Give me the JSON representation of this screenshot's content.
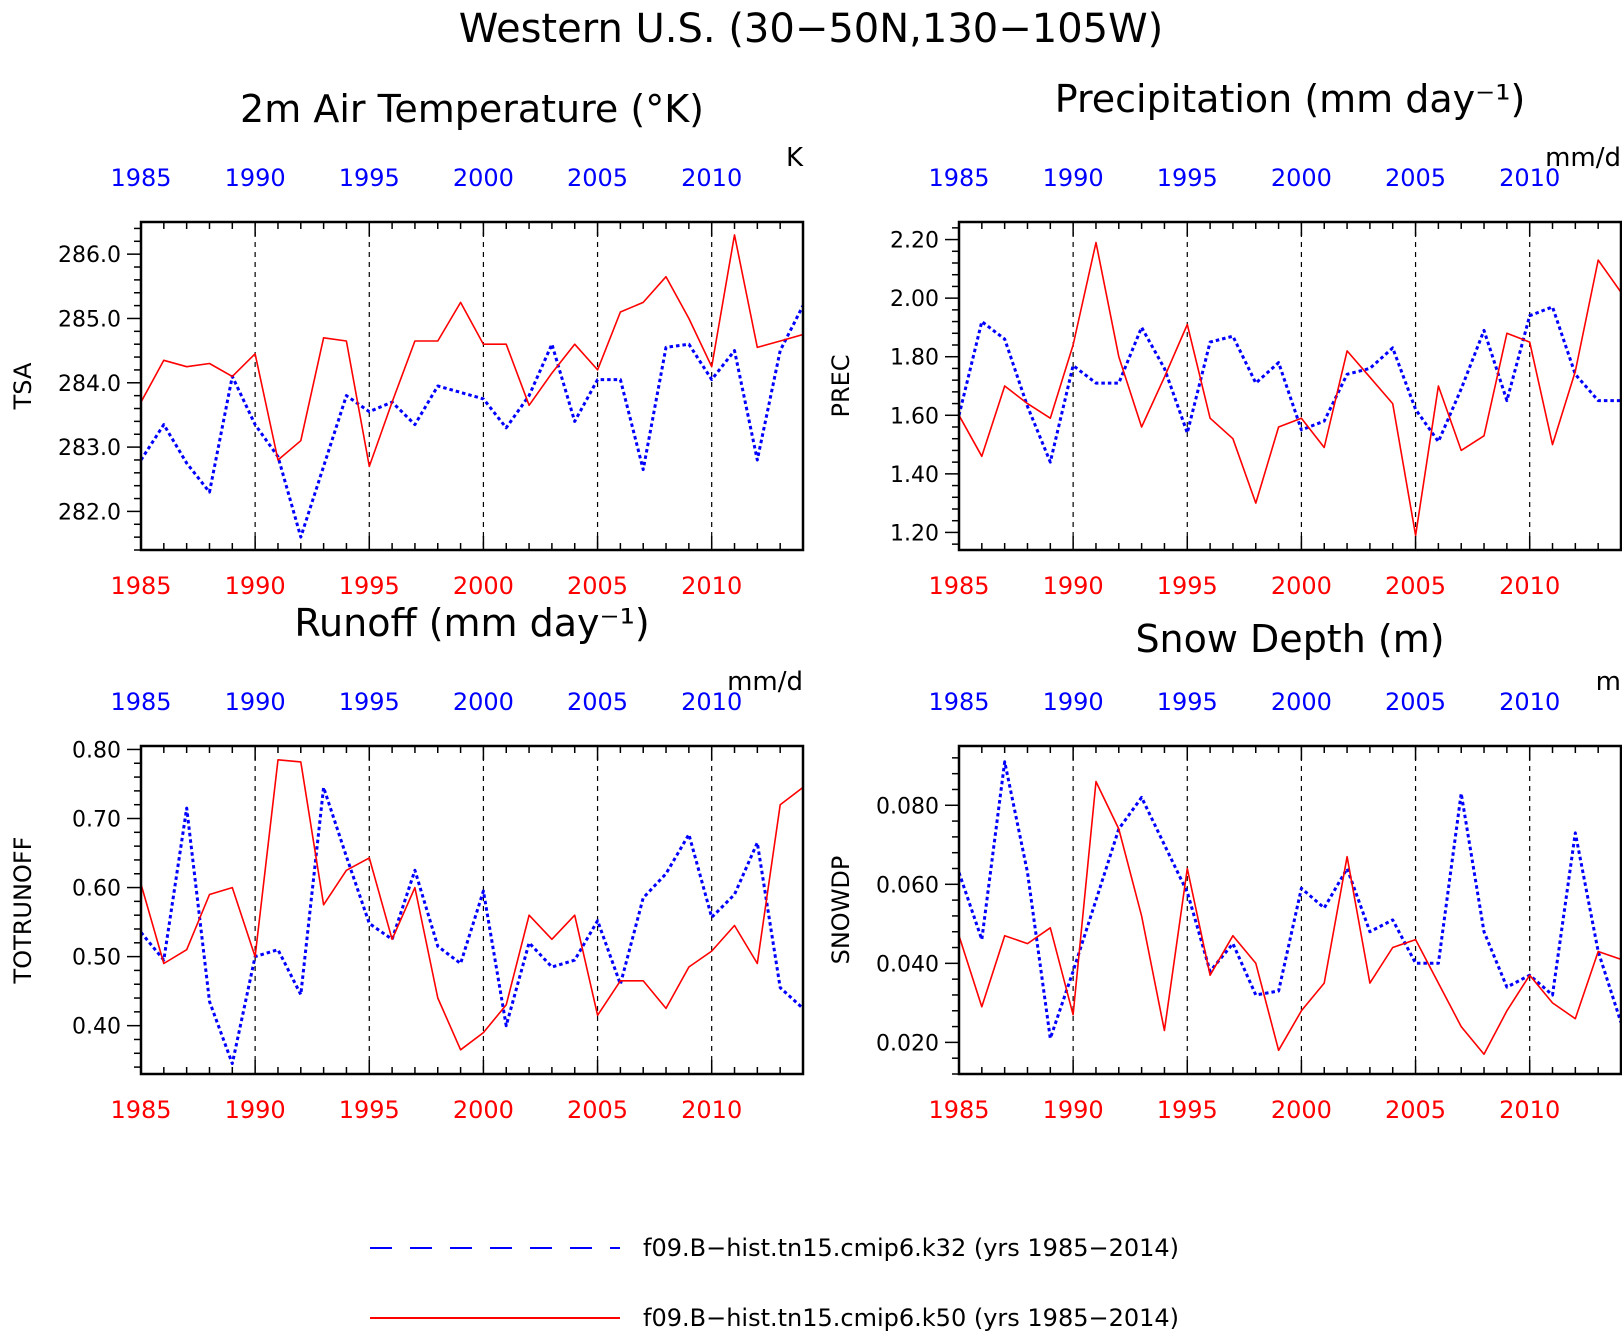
{
  "figure": {
    "title": "Western U.S. (30−50N,130−105W)",
    "colors": {
      "k32": "#0000ff",
      "k50": "#ff0000",
      "axis": "#000000"
    }
  },
  "legend": {
    "items": [
      {
        "label": "f09.B−hist.tn15.cmip6.k32 (yrs 1985−2014)",
        "color": "#0000ff",
        "style": "dashed"
      },
      {
        "label": "f09.B−hist.tn15.cmip6.k50 (yrs 1985−2014)",
        "color": "#ff0000",
        "style": "solid"
      }
    ]
  },
  "chart_data": [
    {
      "type": "line",
      "title": "2m Air Temperature (°K)",
      "units": "K",
      "ylabel": "TSA",
      "xlim": [
        1985,
        2014
      ],
      "ylim": [
        281.4,
        286.5
      ],
      "yticks": [
        282.0,
        283.0,
        284.0,
        285.0,
        286.0
      ],
      "yticklabels": [
        "282.0",
        "283.0",
        "284.0",
        "285.0",
        "286.0"
      ],
      "xticks": [
        1985,
        1990,
        1995,
        2000,
        2005,
        2010
      ],
      "xticklabels": [
        "1985",
        "1990",
        "1995",
        "2000",
        "2005",
        "2010"
      ],
      "grid": "dashed vertical lines at 5-year ticks",
      "x": [
        1985,
        1986,
        1987,
        1988,
        1989,
        1990,
        1991,
        1992,
        1993,
        1994,
        1995,
        1996,
        1997,
        1998,
        1999,
        2000,
        2001,
        2002,
        2003,
        2004,
        2005,
        2006,
        2007,
        2008,
        2009,
        2010,
        2011,
        2012,
        2013,
        2014
      ],
      "series": [
        {
          "name": "f09.B−hist.tn15.cmip6.k32",
          "color": "#0000ff",
          "style": "dashed",
          "values": [
            282.8,
            283.35,
            282.75,
            282.3,
            284.1,
            283.35,
            282.85,
            281.6,
            282.7,
            283.8,
            283.55,
            283.7,
            283.35,
            283.95,
            283.85,
            283.75,
            283.3,
            283.8,
            284.6,
            283.4,
            284.05,
            284.05,
            282.65,
            284.55,
            284.6,
            284.05,
            284.5,
            282.8,
            284.5,
            285.2
          ]
        },
        {
          "name": "f09.B−hist.tn15.cmip6.k50",
          "color": "#ff0000",
          "style": "solid",
          "values": [
            283.7,
            284.35,
            284.25,
            284.3,
            284.1,
            284.45,
            282.8,
            283.1,
            284.7,
            284.65,
            282.7,
            283.7,
            284.65,
            284.65,
            285.25,
            284.6,
            284.6,
            283.65,
            284.15,
            284.6,
            284.2,
            285.1,
            285.25,
            285.65,
            285.0,
            284.25,
            286.3,
            284.55,
            284.65,
            284.75
          ]
        }
      ]
    },
    {
      "type": "line",
      "title": "Precipitation (mm day⁻¹)",
      "units": "mm/d",
      "ylabel": "PREC",
      "xlim": [
        1985,
        2014
      ],
      "ylim": [
        1.14,
        2.26
      ],
      "yticks": [
        1.2,
        1.4,
        1.6,
        1.8,
        2.0,
        2.2
      ],
      "yticklabels": [
        "1.20",
        "1.40",
        "1.60",
        "1.80",
        "2.00",
        "2.20"
      ],
      "xticks": [
        1985,
        1990,
        1995,
        2000,
        2005,
        2010
      ],
      "xticklabels": [
        "1985",
        "1990",
        "1995",
        "2000",
        "2005",
        "2010"
      ],
      "grid": "dashed vertical lines at 5-year ticks",
      "x": [
        1985,
        1986,
        1987,
        1988,
        1989,
        1990,
        1991,
        1992,
        1993,
        1994,
        1995,
        1996,
        1997,
        1998,
        1999,
        2000,
        2001,
        2002,
        2003,
        2004,
        2005,
        2006,
        2007,
        2008,
        2009,
        2010,
        2011,
        2012,
        2013,
        2014
      ],
      "series": [
        {
          "name": "f09.B−hist.tn15.cmip6.k32",
          "color": "#0000ff",
          "style": "dashed",
          "values": [
            1.6,
            1.92,
            1.86,
            1.63,
            1.44,
            1.77,
            1.71,
            1.71,
            1.9,
            1.76,
            1.54,
            1.85,
            1.87,
            1.71,
            1.78,
            1.55,
            1.58,
            1.74,
            1.76,
            1.83,
            1.62,
            1.51,
            1.69,
            1.89,
            1.65,
            1.94,
            1.97,
            1.74,
            1.65,
            1.65
          ]
        },
        {
          "name": "f09.B−hist.tn15.cmip6.k50",
          "color": "#ff0000",
          "style": "solid",
          "values": [
            1.6,
            1.46,
            1.7,
            1.64,
            1.59,
            1.84,
            2.19,
            1.8,
            1.56,
            1.73,
            1.91,
            1.59,
            1.52,
            1.3,
            1.56,
            1.59,
            1.49,
            1.82,
            1.73,
            1.64,
            1.19,
            1.7,
            1.48,
            1.53,
            1.88,
            1.85,
            1.5,
            1.75,
            2.13,
            2.02
          ]
        }
      ]
    },
    {
      "type": "line",
      "title": "Runoff (mm day⁻¹)",
      "units": "mm/d",
      "ylabel": "TOTRUNOFF",
      "xlim": [
        1985,
        2014
      ],
      "ylim": [
        0.33,
        0.805
      ],
      "yticks": [
        0.4,
        0.5,
        0.6,
        0.7,
        0.8
      ],
      "yticklabels": [
        "0.40",
        "0.50",
        "0.60",
        "0.70",
        "0.80"
      ],
      "xticks": [
        1985,
        1990,
        1995,
        2000,
        2005,
        2010
      ],
      "xticklabels": [
        "1985",
        "1990",
        "1995",
        "2000",
        "2005",
        "2010"
      ],
      "grid": "dashed vertical lines at 5-year ticks",
      "x": [
        1985,
        1986,
        1987,
        1988,
        1989,
        1990,
        1991,
        1992,
        1993,
        1994,
        1995,
        1996,
        1997,
        1998,
        1999,
        2000,
        2001,
        2002,
        2003,
        2004,
        2005,
        2006,
        2007,
        2008,
        2009,
        2010,
        2011,
        2012,
        2013,
        2014
      ],
      "series": [
        {
          "name": "f09.B−hist.tn15.cmip6.k32",
          "color": "#0000ff",
          "style": "dashed",
          "values": [
            0.535,
            0.495,
            0.715,
            0.435,
            0.345,
            0.5,
            0.51,
            0.445,
            0.745,
            0.645,
            0.548,
            0.525,
            0.625,
            0.515,
            0.49,
            0.595,
            0.4,
            0.52,
            0.485,
            0.495,
            0.552,
            0.46,
            0.585,
            0.62,
            0.677,
            0.557,
            0.59,
            0.665,
            0.455,
            0.425
          ]
        },
        {
          "name": "f09.B−hist.tn15.cmip6.k50",
          "color": "#ff0000",
          "style": "solid",
          "values": [
            0.605,
            0.49,
            0.51,
            0.59,
            0.6,
            0.5,
            0.785,
            0.782,
            0.575,
            0.625,
            0.643,
            0.525,
            0.6,
            0.44,
            0.365,
            0.39,
            0.43,
            0.56,
            0.525,
            0.56,
            0.415,
            0.465,
            0.465,
            0.425,
            0.485,
            0.508,
            0.545,
            0.49,
            0.72,
            0.745
          ]
        }
      ]
    },
    {
      "type": "line",
      "title": "Snow Depth (m)",
      "units": "m",
      "ylabel": "SNOWDP",
      "xlim": [
        1985,
        2014
      ],
      "ylim": [
        0.012,
        0.095
      ],
      "yticks": [
        0.02,
        0.04,
        0.06,
        0.08
      ],
      "yticklabels": [
        "0.020",
        "0.040",
        "0.060",
        "0.080"
      ],
      "xticks": [
        1985,
        1990,
        1995,
        2000,
        2005,
        2010
      ],
      "xticklabels": [
        "1985",
        "1990",
        "1995",
        "2000",
        "2005",
        "2010"
      ],
      "grid": "dashed vertical lines at 5-year ticks",
      "x": [
        1985,
        1986,
        1987,
        1988,
        1989,
        1990,
        1991,
        1992,
        1993,
        1994,
        1995,
        1996,
        1997,
        1998,
        1999,
        2000,
        2001,
        2002,
        2003,
        2004,
        2005,
        2006,
        2007,
        2008,
        2009,
        2010,
        2011,
        2012,
        2013,
        2014
      ],
      "series": [
        {
          "name": "f09.B−hist.tn15.cmip6.k32",
          "color": "#0000ff",
          "style": "dashed",
          "values": [
            0.063,
            0.046,
            0.091,
            0.063,
            0.021,
            0.038,
            0.056,
            0.074,
            0.082,
            0.07,
            0.058,
            0.038,
            0.045,
            0.032,
            0.033,
            0.059,
            0.054,
            0.064,
            0.048,
            0.051,
            0.04,
            0.04,
            0.083,
            0.048,
            0.034,
            0.037,
            0.032,
            0.073,
            0.043,
            0.025
          ]
        },
        {
          "name": "f09.B−hist.tn15.cmip6.k50",
          "color": "#ff0000",
          "style": "solid",
          "values": [
            0.047,
            0.029,
            0.047,
            0.045,
            0.049,
            0.027,
            0.086,
            0.074,
            0.052,
            0.023,
            0.064,
            0.037,
            0.047,
            0.04,
            0.018,
            0.028,
            0.035,
            0.067,
            0.035,
            0.044,
            0.046,
            0.035,
            0.024,
            0.017,
            0.028,
            0.037,
            0.03,
            0.026,
            0.043,
            0.041
          ]
        }
      ]
    }
  ]
}
